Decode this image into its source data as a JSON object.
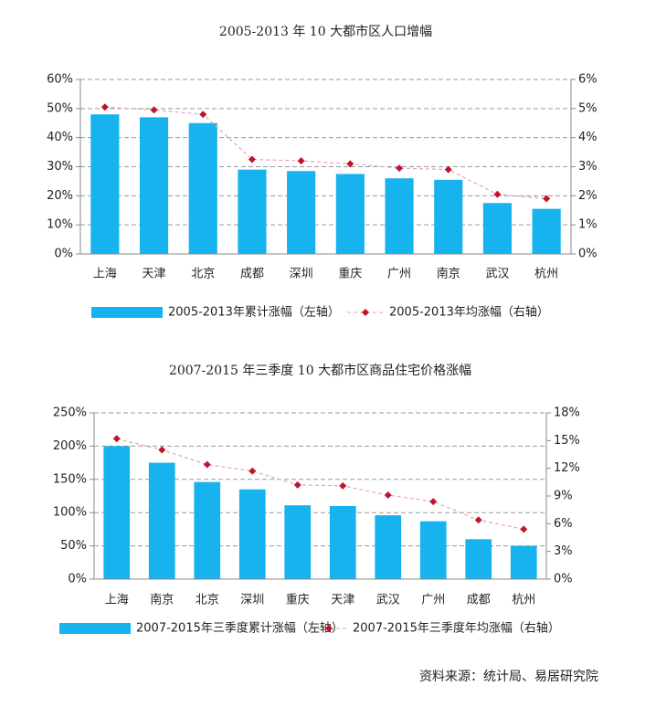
{
  "chart_data": [
    {
      "type": "bar",
      "title": "2005-2013 年 10 大都市区人口增幅",
      "categories": [
        "上海",
        "天津",
        "北京",
        "成都",
        "深圳",
        "重庆",
        "广州",
        "南京",
        "武汉",
        "杭州"
      ],
      "series": [
        {
          "name": "2005-2013年累计涨幅（左轴）",
          "type": "bar",
          "color": "#16b3ee",
          "values": [
            48,
            47,
            45,
            29,
            28.5,
            27.5,
            26,
            25.5,
            17.5,
            15.5
          ]
        },
        {
          "name": "2005-2013年均涨幅（右轴）",
          "type": "line",
          "axis": "y2",
          "color": "#c0142e",
          "values": [
            5.05,
            4.95,
            4.8,
            3.25,
            3.2,
            3.1,
            2.95,
            2.9,
            2.05,
            1.9
          ]
        }
      ],
      "ylim": [
        0,
        60
      ],
      "yticks": [
        {
          "value": 0,
          "label": "0%"
        },
        {
          "value": 10,
          "label": "10%"
        },
        {
          "value": 20,
          "label": "20%"
        },
        {
          "value": 30,
          "label": "30%"
        },
        {
          "value": 40,
          "label": "40%"
        },
        {
          "value": 50,
          "label": "50%"
        },
        {
          "value": 60,
          "label": "60%"
        }
      ],
      "y2lim": [
        0,
        6
      ],
      "y2ticks": [
        {
          "value": 0,
          "label": "0%"
        },
        {
          "value": 1,
          "label": "1%"
        },
        {
          "value": 2,
          "label": "2%"
        },
        {
          "value": 3,
          "label": "3%"
        },
        {
          "value": 4,
          "label": "4%"
        },
        {
          "value": 5,
          "label": "5%"
        },
        {
          "value": 6,
          "label": "6%"
        }
      ],
      "grid": true
    },
    {
      "type": "bar",
      "title": "2007-2015 年三季度 10 大都市区商品住宅价格涨幅",
      "categories": [
        "上海",
        "南京",
        "北京",
        "深圳",
        "重庆",
        "天津",
        "武汉",
        "广州",
        "成都",
        "杭州"
      ],
      "series": [
        {
          "name": "2007-2015年三季度累计涨幅（左轴）",
          "type": "bar",
          "color": "#16b3ee",
          "values": [
            200,
            175,
            146,
            135,
            111,
            110,
            96,
            87,
            60,
            50
          ]
        },
        {
          "name": "2007-2015年三季度年均涨幅（右轴）",
          "type": "line",
          "axis": "y2",
          "color": "#c0142e",
          "values": [
            15.2,
            14,
            12.4,
            11.7,
            10.2,
            10.1,
            9.1,
            8.4,
            6.4,
            5.4
          ]
        }
      ],
      "ylim": [
        0,
        250
      ],
      "yticks": [
        {
          "value": 0,
          "label": "0%"
        },
        {
          "value": 50,
          "label": "50%"
        },
        {
          "value": 100,
          "label": "100%"
        },
        {
          "value": 150,
          "label": "150%"
        },
        {
          "value": 200,
          "label": "200%"
        },
        {
          "value": 250,
          "label": "250%"
        }
      ],
      "y2lim": [
        0,
        18
      ],
      "y2ticks": [
        {
          "value": 0,
          "label": "0%"
        },
        {
          "value": 3,
          "label": "3%"
        },
        {
          "value": 6,
          "label": "6%"
        },
        {
          "value": 9,
          "label": "9%"
        },
        {
          "value": 12,
          "label": "12%"
        },
        {
          "value": 15,
          "label": "15%"
        },
        {
          "value": 18,
          "label": "18%"
        }
      ],
      "grid": true
    }
  ],
  "source": "资料来源：统计局、易居研究院"
}
